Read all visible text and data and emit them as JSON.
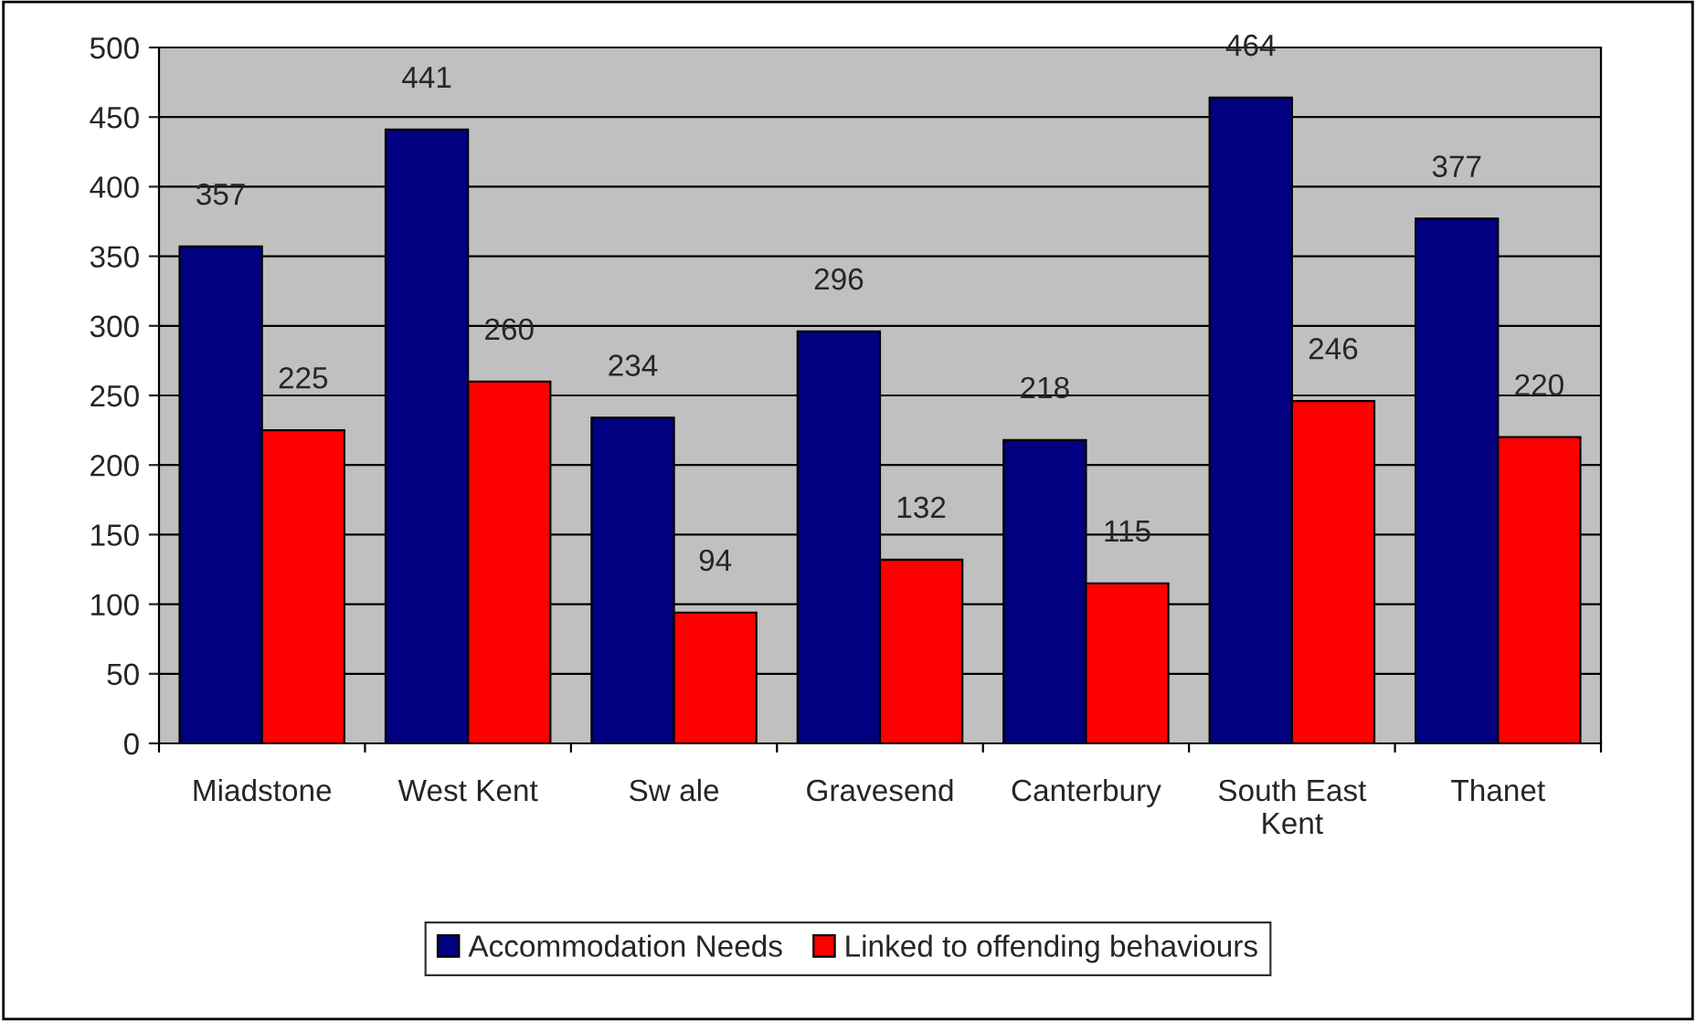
{
  "chart_data": {
    "type": "bar",
    "categories": [
      "Miadstone",
      "West Kent",
      "Sw ale",
      "Gravesend",
      "Canterbury",
      "South East\nKent",
      "Thanet"
    ],
    "series": [
      {
        "name": "Accommodation Needs",
        "color": "#000080",
        "values": [
          357,
          441,
          234,
          296,
          218,
          464,
          377
        ]
      },
      {
        "name": "Linked to offending behaviours",
        "color": "#ff0000",
        "values": [
          225,
          260,
          94,
          132,
          115,
          246,
          220
        ]
      }
    ],
    "ylim": [
      0,
      500
    ],
    "yticks": [
      0,
      50,
      100,
      150,
      200,
      250,
      300,
      350,
      400,
      450,
      500
    ],
    "grid": "y",
    "legend": "bottom",
    "data_labels": true
  }
}
